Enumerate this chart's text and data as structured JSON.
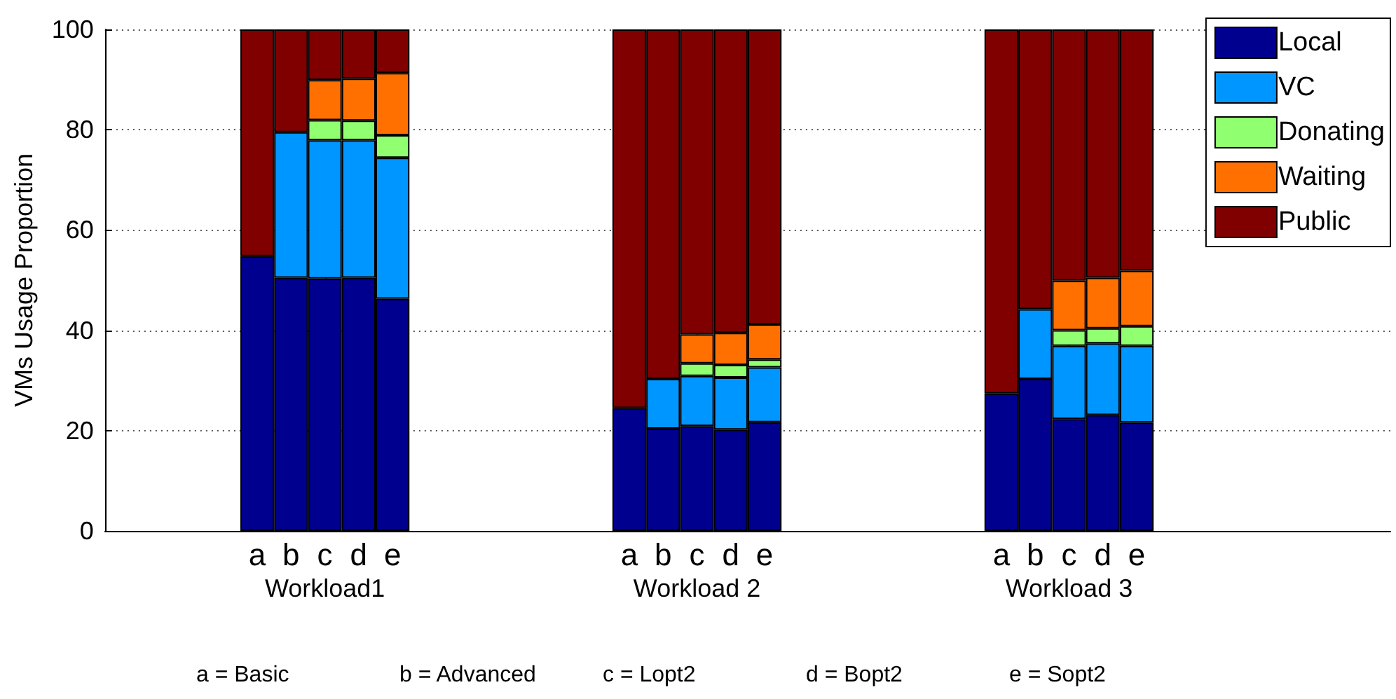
{
  "chart_data": {
    "type": "bar",
    "stacked": true,
    "ylabel": "VMs Usage Proportion",
    "categories": [
      null,
      null,
      null,
      null,
      "a",
      "b",
      "c",
      "d",
      "e",
      null,
      null,
      null,
      null,
      null,
      null,
      "a",
      "b",
      "c",
      "d",
      "e",
      null,
      null,
      null,
      null,
      null,
      null,
      "a",
      "b",
      "c",
      "d",
      "e",
      null,
      null,
      null,
      null,
      null,
      null,
      null
    ],
    "series": [
      {
        "name": "Local",
        "color": "#00008f",
        "values": [
          null,
          null,
          null,
          null,
          54.8,
          50.5,
          50.3,
          50.5,
          46.3,
          null,
          null,
          null,
          null,
          null,
          null,
          24.5,
          20.4,
          20.9,
          20.2,
          21.7,
          null,
          null,
          null,
          null,
          null,
          null,
          27.4,
          30.3,
          22.3,
          23.1,
          21.6,
          null,
          null,
          null,
          null,
          null,
          null,
          null
        ]
      },
      {
        "name": "VC",
        "color": "#0096ff",
        "values": [
          null,
          null,
          null,
          null,
          null,
          29.0,
          27.6,
          27.4,
          28.1,
          null,
          null,
          null,
          null,
          null,
          null,
          null,
          9.9,
          10.0,
          10.4,
          10.9,
          null,
          null,
          null,
          null,
          null,
          null,
          null,
          13.9,
          14.6,
          14.3,
          15.3,
          null,
          null,
          null,
          null,
          null,
          null,
          null
        ]
      },
      {
        "name": "Donating",
        "color": "#90ff70",
        "values": [
          null,
          null,
          null,
          null,
          null,
          null,
          4.0,
          3.9,
          4.5,
          null,
          null,
          null,
          null,
          null,
          null,
          null,
          null,
          2.5,
          2.5,
          1.6,
          null,
          null,
          null,
          null,
          null,
          null,
          null,
          null,
          3.1,
          3.0,
          3.9,
          null,
          null,
          null,
          null,
          null,
          null,
          null
        ]
      },
      {
        "name": "Waiting",
        "color": "#ff7000",
        "values": [
          null,
          null,
          null,
          null,
          null,
          null,
          8.0,
          8.4,
          12.4,
          null,
          null,
          null,
          null,
          null,
          null,
          null,
          null,
          5.8,
          6.4,
          7.0,
          null,
          null,
          null,
          null,
          null,
          null,
          null,
          null,
          9.9,
          10.1,
          11.1,
          null,
          null,
          null,
          null,
          null,
          null,
          null
        ]
      },
      {
        "name": "Public",
        "color": "#800000",
        "values": [
          null,
          null,
          null,
          null,
          45.2,
          20.5,
          10.1,
          9.8,
          8.7,
          null,
          null,
          null,
          null,
          null,
          null,
          75.5,
          69.7,
          60.8,
          60.5,
          58.8,
          null,
          null,
          null,
          null,
          null,
          null,
          72.6,
          55.8,
          50.1,
          49.5,
          48.1,
          null,
          null,
          null,
          null,
          null,
          null,
          null
        ]
      }
    ],
    "ylim": [
      0,
      100
    ],
    "yticks": [
      0,
      20,
      40,
      60,
      80,
      100
    ],
    "grid": true,
    "legend": "top right",
    "annotations": [
      "Workload1",
      "Workload 2",
      "Workload 3",
      "a = Basic",
      "b = Advanced",
      "c = Lopt2",
      "d = Bopt2",
      "e = Sopt2"
    ]
  }
}
